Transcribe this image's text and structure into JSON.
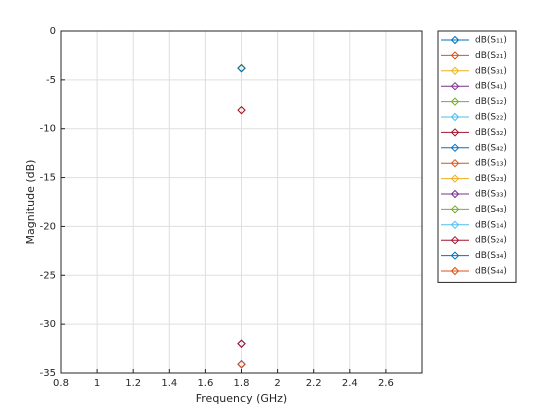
{
  "chart_data": {
    "type": "scatter",
    "xlabel": "Frequency (GHz)",
    "ylabel": "Magnitude (dB)",
    "xlim": [
      0.8,
      2.8
    ],
    "xticks": [
      0.8,
      1,
      1.2,
      1.4,
      1.6,
      1.8,
      2,
      2.2,
      2.4,
      2.6
    ],
    "ylim": [
      -35,
      0
    ],
    "yticks": [
      -35,
      -30,
      -25,
      -20,
      -15,
      -10,
      -5,
      0
    ],
    "grid": true,
    "legend": "outside-right",
    "series": [
      {
        "name": "dB(S₁₁)",
        "color": "#0072BD",
        "x": [
          1.8
        ],
        "values": [
          -34.1
        ]
      },
      {
        "name": "dB(S₂₁)",
        "color": "#D95319",
        "x": [
          1.8
        ],
        "values": [
          -3.8
        ]
      },
      {
        "name": "dB(S₃₁)",
        "color": "#EDB120",
        "x": [
          1.8
        ],
        "values": [
          -8.1
        ]
      },
      {
        "name": "dB(S₄₁)",
        "color": "#7E2F8E",
        "x": [
          1.8
        ],
        "values": [
          -32
        ]
      },
      {
        "name": "dB(S₁₂)",
        "color": "#77AC30",
        "x": [
          1.8
        ],
        "values": [
          -3.8
        ]
      },
      {
        "name": "dB(S₂₂)",
        "color": "#4DBEEE",
        "x": [
          1.8
        ],
        "values": [
          -34.1
        ]
      },
      {
        "name": "dB(S₃₂)",
        "color": "#A2142F",
        "x": [
          1.8
        ],
        "values": [
          -8.1
        ]
      },
      {
        "name": "dB(S₄₂)",
        "color": "#0072BD",
        "x": [
          1.8
        ],
        "values": [
          -32
        ]
      },
      {
        "name": "dB(S₁₃)",
        "color": "#D95319",
        "x": [
          1.8
        ],
        "values": [
          -32
        ]
      },
      {
        "name": "dB(S₂₃)",
        "color": "#EDB120",
        "x": [
          1.8
        ],
        "values": [
          -3.8
        ]
      },
      {
        "name": "dB(S₃₃)",
        "color": "#7E2F8E",
        "x": [
          1.8
        ],
        "values": [
          -34.1
        ]
      },
      {
        "name": "dB(S₄₃)",
        "color": "#77AC30",
        "x": [
          1.8
        ],
        "values": [
          -3.8
        ]
      },
      {
        "name": "dB(S₁₄)",
        "color": "#4DBEEE",
        "x": [
          1.8
        ],
        "values": [
          -32
        ]
      },
      {
        "name": "dB(S₂₄)",
        "color": "#A2142F",
        "x": [
          1.8
        ],
        "values": [
          -32
        ]
      },
      {
        "name": "dB(S₃₄)",
        "color": "#0072BD",
        "x": [
          1.8
        ],
        "values": [
          -3.8
        ]
      },
      {
        "name": "dB(S₄₄)",
        "color": "#D95319",
        "x": [
          1.8
        ],
        "values": [
          -34.1
        ]
      }
    ]
  }
}
